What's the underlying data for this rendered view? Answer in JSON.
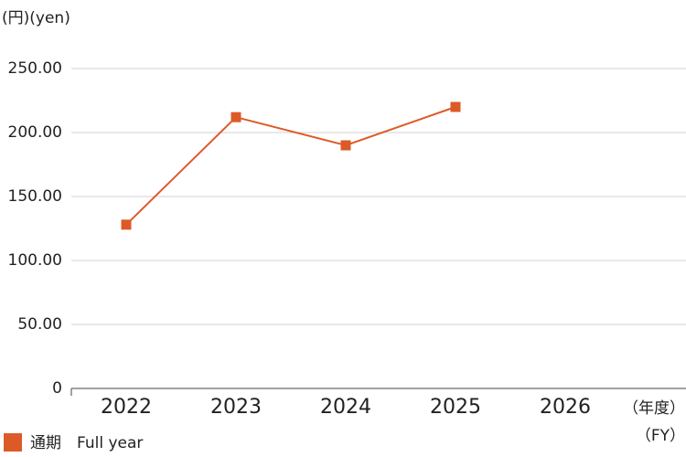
{
  "chart_data": {
    "type": "line",
    "y_label": "(円)(yen)",
    "x_label": "（年度）",
    "x_label_en": "（FY）",
    "categories": [
      "2022",
      "2023",
      "2024",
      "2025",
      "2026"
    ],
    "series": [
      {
        "name": "通期　Full year",
        "color": "#dc5a28",
        "values": [
          128,
          212,
          190,
          220,
          null
        ]
      }
    ],
    "ylim": [
      0,
      250
    ],
    "yticks": [
      0,
      {
        "value": 50,
        "label": "50.00"
      },
      {
        "value": 100,
        "label": "100.00"
      },
      {
        "value": 150,
        "label": "150.00"
      },
      {
        "value": 200,
        "label": "200.00"
      },
      {
        "value": 250,
        "label": "250.00"
      }
    ],
    "grid": true
  }
}
